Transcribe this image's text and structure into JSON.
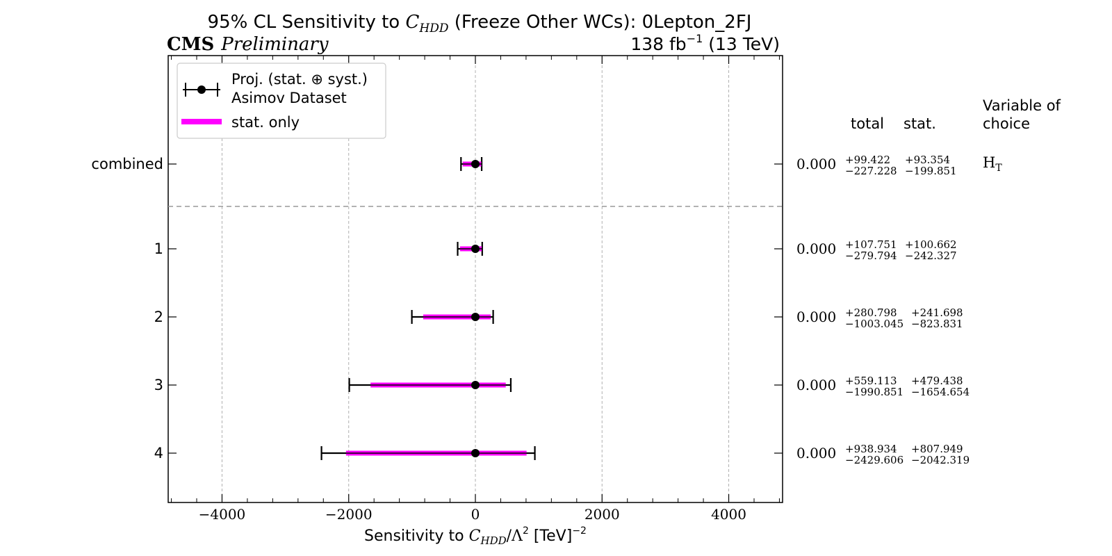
{
  "chart_data": {
    "type": "scatter",
    "title_prefix": "95% CL Sensitivity to ",
    "title_symbol": "C",
    "title_symbol_sub": "HDD",
    "title_suffix": " (Freeze Other WCs): 0Lepton_2FJ",
    "experiment": "CMS",
    "status": "Preliminary",
    "lumi": "138 fb",
    "lumi_exp": "−1",
    "energy": " (13 TeV)",
    "xlabel_prefix": "Sensitivity to ",
    "xlabel_symbol": "C",
    "xlabel_sub": "HDD",
    "xlabel_mid": "/Λ",
    "xlabel_sup1": "2",
    "xlabel_suffix": " [TeV]",
    "xlabel_sup2": "−2",
    "xlim": [
      -4850,
      4850
    ],
    "xticks": [
      -4000,
      -2000,
      0,
      2000,
      4000
    ],
    "xtick_labels": [
      "−4000",
      "−2000",
      "0",
      "2000",
      "4000"
    ],
    "grid": "vertical dashed",
    "legend_position": "top-left",
    "legend": {
      "total_label_line1": "Proj. (stat. ⊕ syst.)",
      "total_label_line2": "Asimov Dataset",
      "stat_label": "stat. only"
    },
    "table_headers": {
      "total": "total",
      "stat": "stat.",
      "variable_line1": "Variable of",
      "variable_line2": "choice"
    },
    "variable_of_choice": "H",
    "variable_sub": "T",
    "colors": {
      "total": "#000000",
      "stat": "#ff00ff",
      "grid": "#b0b0b0",
      "separator": "#999999"
    },
    "rows": [
      {
        "label": "combined",
        "value": 0.0,
        "value_text": "0.000",
        "total_up": 99.422,
        "total_down": 227.228,
        "stat_up": 93.354,
        "stat_down": 199.851,
        "total_up_text": "+99.422",
        "total_down_text": "−227.228",
        "stat_up_text": "+93.354",
        "stat_down_text": "−199.851"
      },
      {
        "label": "1",
        "value": 0.0,
        "value_text": "0.000",
        "total_up": 107.751,
        "total_down": 279.794,
        "stat_up": 100.662,
        "stat_down": 242.327,
        "total_up_text": "+107.751",
        "total_down_text": "−279.794",
        "stat_up_text": "+100.662",
        "stat_down_text": "−242.327"
      },
      {
        "label": "2",
        "value": 0.0,
        "value_text": "0.000",
        "total_up": 280.798,
        "total_down": 1003.045,
        "stat_up": 241.698,
        "stat_down": 823.831,
        "total_up_text": "+280.798",
        "total_down_text": "−1003.045",
        "stat_up_text": "+241.698",
        "stat_down_text": "−823.831"
      },
      {
        "label": "3",
        "value": 0.0,
        "value_text": "0.000",
        "total_up": 559.113,
        "total_down": 1990.851,
        "stat_up": 479.438,
        "stat_down": 1654.654,
        "total_up_text": "+559.113",
        "total_down_text": "−1990.851",
        "stat_up_text": "+479.438",
        "stat_down_text": "−1654.654"
      },
      {
        "label": "4",
        "value": 0.0,
        "value_text": "0.000",
        "total_up": 938.934,
        "total_down": 2429.606,
        "stat_up": 807.949,
        "stat_down": 2042.319,
        "total_up_text": "+938.934",
        "total_down_text": "−2429.606",
        "stat_up_text": "+807.949",
        "stat_down_text": "−2042.319"
      }
    ]
  }
}
